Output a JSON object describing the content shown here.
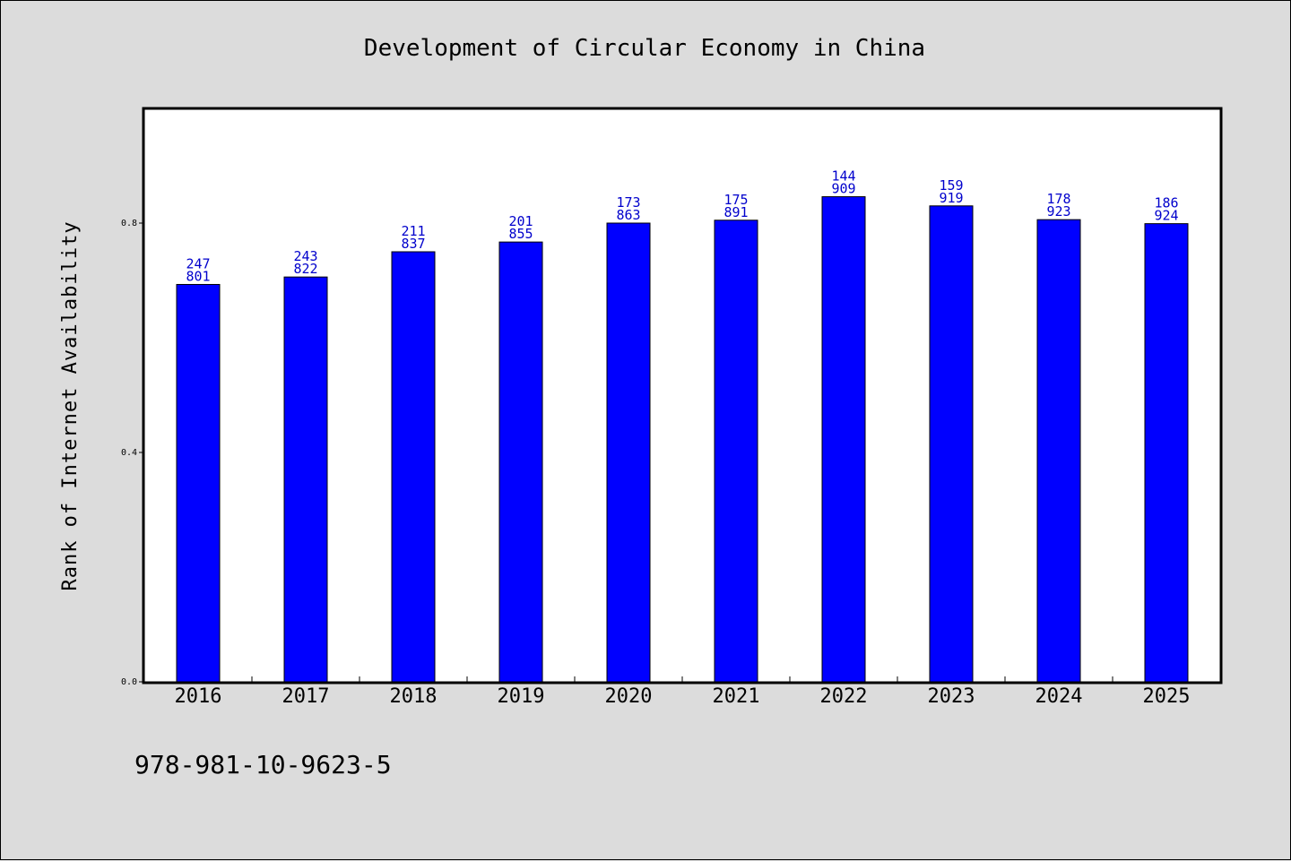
{
  "chart_data": {
    "type": "bar",
    "title": "Development of Circular Economy in China",
    "xlabel": "",
    "ylabel": "Rank of Internet Availability",
    "categories": [
      "2016",
      "2017",
      "2018",
      "2019",
      "2020",
      "2021",
      "2022",
      "2023",
      "2024",
      "2025"
    ],
    "values": [
      0.693,
      0.706,
      0.75,
      0.767,
      0.8,
      0.805,
      0.846,
      0.83,
      0.806,
      0.799
    ],
    "data_labels": [
      [
        "247",
        "801"
      ],
      [
        "243",
        "822"
      ],
      [
        "211",
        "837"
      ],
      [
        "201",
        "855"
      ],
      [
        "173",
        "863"
      ],
      [
        "175",
        "891"
      ],
      [
        "144",
        "909"
      ],
      [
        "159",
        "919"
      ],
      [
        "178",
        "923"
      ],
      [
        "186",
        "924"
      ]
    ],
    "yticks": [
      "0.0",
      "0.4",
      "0.8"
    ],
    "ylim": [
      0,
      1.0
    ],
    "bar_color": "#0000ff",
    "label_color": "#0000cc",
    "grid": false,
    "legend": false
  },
  "footer": {
    "isbn": "978-981-10-9623-5"
  }
}
